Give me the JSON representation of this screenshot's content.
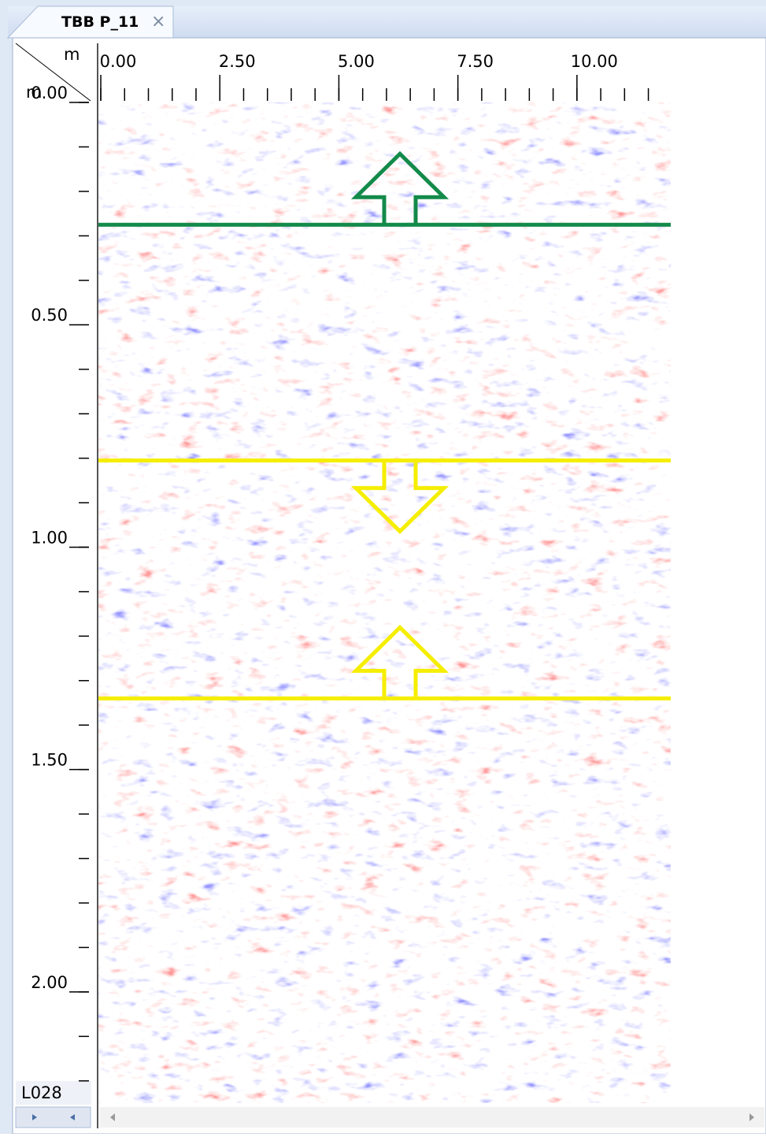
{
  "tab": {
    "title": "TBB P_11",
    "close": "×"
  },
  "x_axis": {
    "unit": "m",
    "xlim": [
      -0.05,
      11.97
    ],
    "ticks": [
      {
        "value": 0,
        "label": "0.00"
      },
      {
        "value": 2.5,
        "label": "2.50"
      },
      {
        "value": 5,
        "label": "5.00"
      },
      {
        "value": 7.5,
        "label": "7.50"
      },
      {
        "value": 10,
        "label": "10.00"
      }
    ]
  },
  "y_axis": {
    "unit": "m",
    "ylim": [
      0,
      2.25
    ],
    "ticks": [
      {
        "value": 0,
        "label": "0.00"
      },
      {
        "value": 0.5,
        "label": "0.50"
      },
      {
        "value": 1,
        "label": "1.00"
      },
      {
        "value": 1.5,
        "label": "1.50"
      },
      {
        "value": 2,
        "label": "2.00"
      }
    ]
  },
  "line_id": "L028",
  "markers": [
    {
      "depth": 0.275,
      "color": "#138a4a",
      "arrow": "up"
    },
    {
      "depth": 0.805,
      "color": "#f5ee00",
      "arrow": "down"
    },
    {
      "depth": 1.34,
      "color": "#f5ee00",
      "arrow": "up"
    }
  ]
}
